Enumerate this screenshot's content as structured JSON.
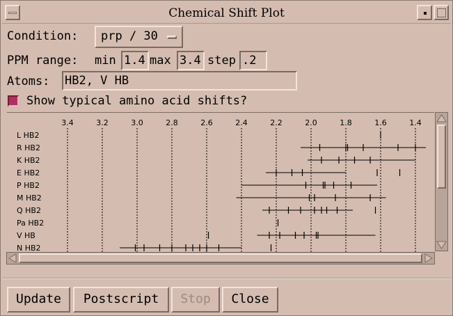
{
  "window": {
    "title": "Chemical Shift Plot"
  },
  "condition": {
    "label": "Condition:",
    "value": "prp / 30"
  },
  "ppm": {
    "label": "PPM range:",
    "min_label": "min",
    "min": "1.4",
    "max_label": "max",
    "max": "3.4",
    "step_label": "step",
    "step": ".2"
  },
  "atoms": {
    "label": "Atoms:",
    "value": "HB2, V HB"
  },
  "typical": {
    "label": "Show typical amino acid shifts?",
    "checked": true
  },
  "plot": {
    "ticks": [
      "3.4",
      "3.2",
      "3.0",
      "2.8",
      "2.6",
      "2.4",
      "2.2",
      "2.0",
      "1.8",
      "1.6",
      "1.4"
    ],
    "rows": [
      {
        "label": "L HB2",
        "range": null,
        "marks": [
          1.6
        ]
      },
      {
        "label": "R HB2",
        "range": [
          2.06,
          1.34
        ],
        "marks": [
          1.95,
          1.8,
          1.79,
          1.7,
          1.5,
          1.4
        ]
      },
      {
        "label": "K HB2",
        "range": [
          2.02,
          1.4
        ],
        "marks": [
          1.94,
          1.84,
          1.75,
          1.66
        ]
      },
      {
        "label": "E HB2",
        "range": [
          2.26,
          1.8
        ],
        "marks": [
          2.2,
          2.11,
          2.05,
          1.62,
          1.49
        ]
      },
      {
        "label": "P HB2",
        "range": [
          2.4,
          1.62
        ],
        "marks": [
          2.03,
          1.93,
          1.92,
          1.87,
          1.77
        ]
      },
      {
        "label": "M HB2",
        "range": [
          2.43,
          1.57
        ],
        "marks": [
          2.01,
          1.98,
          1.86,
          1.66
        ]
      },
      {
        "label": "Q HB2",
        "range": [
          2.28,
          1.76
        ],
        "marks": [
          2.24,
          2.13,
          2.06,
          1.98,
          1.94,
          1.91,
          1.85,
          1.63
        ]
      },
      {
        "label": "Pa HB2",
        "range": null,
        "marks": [
          2.19
        ]
      },
      {
        "label": "V HB",
        "range": [
          2.31,
          1.63
        ],
        "marks": [
          2.59,
          2.24,
          2.18,
          2.09,
          2.04,
          1.97,
          1.96
        ]
      },
      {
        "label": "N HB2",
        "range": [
          3.1,
          2.4
        ],
        "marks": [
          3.01,
          2.96,
          2.87,
          2.8,
          2.72,
          2.68,
          2.64,
          2.6,
          2.53,
          2.23
        ]
      }
    ]
  },
  "buttons": {
    "update": "Update",
    "postscript": "Postscript",
    "stop": "Stop",
    "close": "Close"
  }
}
